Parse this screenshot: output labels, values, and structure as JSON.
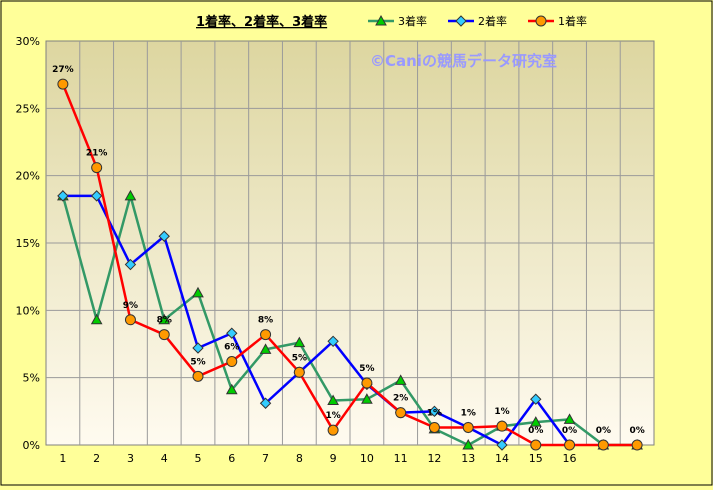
{
  "chart_data": {
    "type": "line",
    "title": "1着率、2着率、3着率",
    "watermark": "©Caniの競馬データ研究室",
    "x": [
      "1",
      "2",
      "3",
      "4",
      "5",
      "6",
      "7",
      "8",
      "9",
      "10",
      "11",
      "12",
      "13",
      "14",
      "15",
      "16",
      "",
      ""
    ],
    "y_ticks": [
      "0%",
      "5%",
      "10%",
      "15%",
      "20%",
      "25%",
      "30%"
    ],
    "ylim": [
      0,
      30
    ],
    "grid": true,
    "legend_position": "top",
    "series": [
      {
        "name": "3着率",
        "color": "#339966",
        "marker": "triangle",
        "marker_color": "#00cc00",
        "values": [
          18.5,
          9.3,
          18.5,
          9.3,
          11.3,
          4.1,
          7.1,
          7.6,
          3.3,
          3.4,
          4.8,
          1.2,
          0,
          1.4,
          1.7,
          1.9,
          0,
          0
        ]
      },
      {
        "name": "2着率",
        "color": "#0000ff",
        "marker": "diamond",
        "marker_color": "#33ccff",
        "values": [
          18.5,
          18.5,
          13.4,
          15.5,
          7.2,
          8.3,
          3.1,
          5.4,
          7.7,
          4.5,
          2.4,
          2.5,
          1.3,
          0,
          3.4,
          0,
          null,
          null
        ]
      },
      {
        "name": "1着率",
        "color": "#ff0000",
        "marker": "circle",
        "marker_color": "#ff9900",
        "values": [
          26.8,
          20.6,
          9.3,
          8.2,
          5.1,
          6.2,
          8.2,
          5.4,
          1.1,
          4.6,
          2.4,
          1.3,
          1.3,
          1.4,
          0,
          0,
          0,
          0
        ]
      }
    ],
    "data_labels": [
      "27%",
      "21%",
      "9%",
      "8%",
      "5%",
      "6%",
      "8%",
      "5%",
      "1%",
      "5%",
      "2%",
      "1%",
      "1%",
      "1%",
      "0%",
      "0%",
      "0%",
      "0%"
    ]
  }
}
